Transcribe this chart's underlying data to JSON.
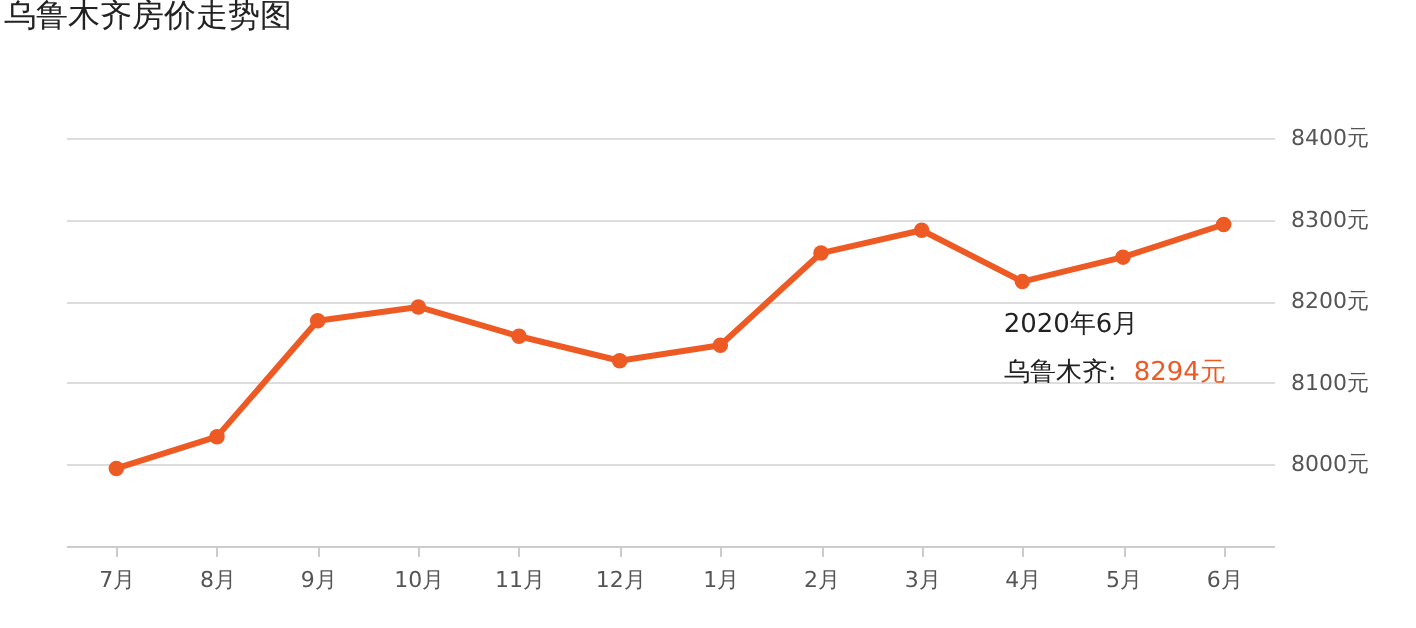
{
  "chart_data": {
    "type": "line",
    "title": "乌鲁木齐房价走势图",
    "categories": [
      "7月",
      "8月",
      "9月",
      "10月",
      "11月",
      "12月",
      "1月",
      "2月",
      "3月",
      "4月",
      "5月",
      "6月"
    ],
    "series": [
      {
        "color": "#ee5a24",
        "values": [
          7995,
          8034,
          8176,
          8193,
          8157,
          8127,
          8146,
          8259,
          8287,
          8224,
          8254,
          8294
        ]
      }
    ],
    "ylim": [
      7900,
      8400
    ],
    "yticks": [
      {
        "value": 8000,
        "label": "8000元"
      },
      {
        "value": 8100,
        "label": "8100元"
      },
      {
        "value": 8200,
        "label": "8200元"
      },
      {
        "value": 8300,
        "label": "8300元"
      },
      {
        "value": 8400,
        "label": "8400元"
      }
    ],
    "grid": "y",
    "marker": "circle",
    "line_style": "solid",
    "annotations": [
      "2020年6月",
      "乌鲁木齐:",
      "8294元"
    ]
  }
}
